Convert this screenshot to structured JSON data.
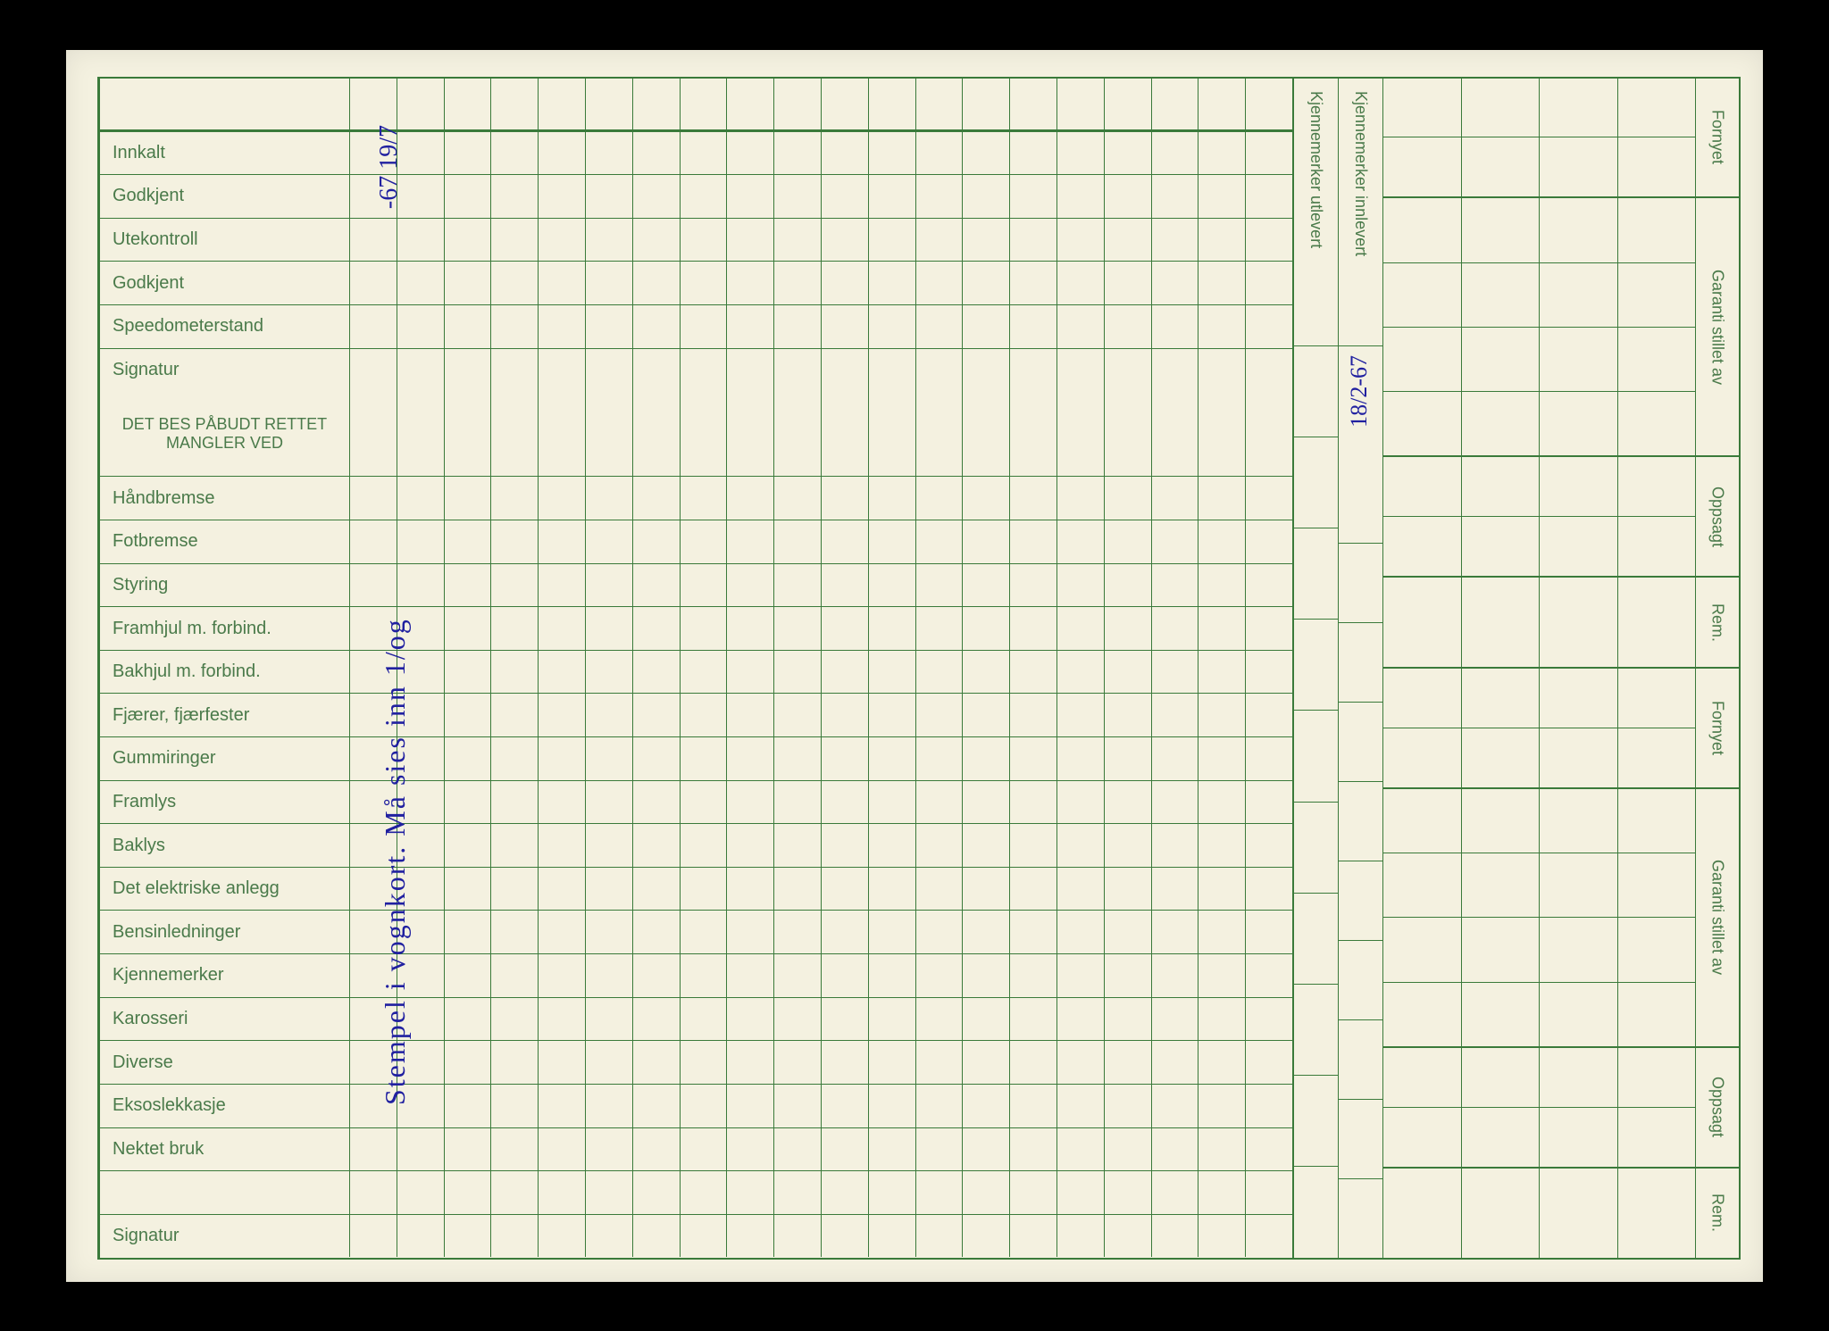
{
  "colors": {
    "paper": "#f4f1e0",
    "line": "#3a7a3a",
    "text": "#4a7a4a",
    "ink": "#2020a0"
  },
  "mainRows": [
    {
      "label": "Innkalt",
      "thick": false
    },
    {
      "label": "Godkjent",
      "thick": false
    },
    {
      "label": "Utekontroll",
      "thick": false
    },
    {
      "label": "Godkjent",
      "thick": false
    },
    {
      "label": "Speedometerstand",
      "thick": false
    },
    {
      "label": "Signatur",
      "thick": true
    }
  ],
  "sectionHeader": {
    "line1": "DET BES PÅBUDT RETTET",
    "line2": "MANGLER VED"
  },
  "checkRows": [
    "Håndbremse",
    "Fotbremse",
    "Styring",
    "Framhjul m. forbind.",
    "Bakhjul m. forbind.",
    "Fjærer, fjærfester",
    "Gummiringer",
    "Framlys",
    "Baklys",
    "Det elektriske anlegg",
    "Bensinledninger",
    "Kjennemerker",
    "Karosseri",
    "Diverse",
    "Eksoslekkasje",
    "Nektet bruk",
    "",
    "Signatur"
  ],
  "narrowHeaders": {
    "col1": "Kjennemerker utlevert",
    "col2": "Kjennemerker innlevert"
  },
  "farRightLabels": {
    "s1": "Fornyet",
    "s2": "Garanti stillet av",
    "s3": "Oppsagt",
    "s4": "Rem.",
    "s5": "Fornyet",
    "s6": "Garanti stillet av",
    "s7": "Oppsagt",
    "s8": "Rem."
  },
  "handwriting": {
    "topDate": "-67\n19/7",
    "vertical": "Stempel i vognkort. Må sies inn 1/og",
    "narrowDate": "18/2-67"
  },
  "gridCols": 20,
  "farRightCols": 4
}
